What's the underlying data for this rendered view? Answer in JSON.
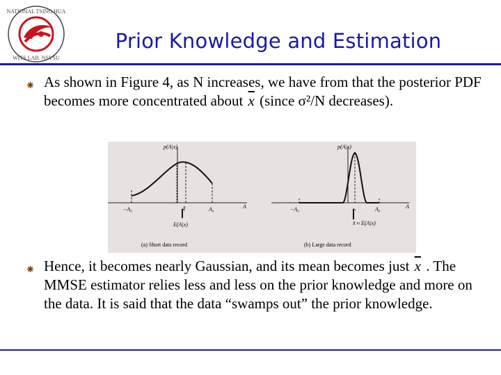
{
  "slide": {
    "title": "Prior Knowledge and Estimation",
    "logo_text_top": "NATIONAL TSING HUA",
    "logo_text_bottom": "WITS LAB. NSYSU",
    "bullets": [
      {
        "pre": "As shown in Figure 4, as N increases, we have from that the posterior PDF becomes more concentrated about",
        "symbol": "x",
        "post": "(since σ²/N decreases)."
      },
      {
        "pre": "Hence, it becomes nearly Gaussian, and its mean becomes just",
        "symbol": "x",
        "post": ". The MMSE estimator relies less and less on the prior knowledge and more on the data.  It is said that the data “swamps out” the prior knowledge."
      }
    ]
  },
  "figure": {
    "panel_a": {
      "ylabel": "p(A|x)",
      "xlabel": "A",
      "tick_left": "−A₀",
      "tick_right": "A₀",
      "mark_xbar": "x̄",
      "mark_label": "E(A|x)",
      "caption": "(a)   Short data record"
    },
    "panel_b": {
      "ylabel": "p(A|x)",
      "xlabel": "A",
      "tick_left": "−A₀",
      "tick_right": "A₀",
      "mark_label": "x̄ ≈ E(A|x)",
      "caption": "(b)   Large data record"
    }
  },
  "colors": {
    "title": "#1a1aa6",
    "rule": "#1a1aa6",
    "figure_bg": "#e5e3df",
    "logo_red": "#c8141e"
  }
}
